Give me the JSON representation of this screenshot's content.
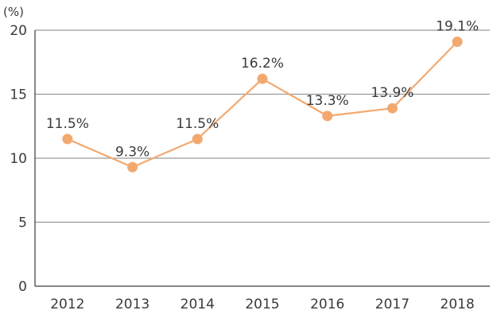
{
  "chart_data": {
    "type": "line",
    "title": "",
    "xlabel": "",
    "ylabel": "(%)",
    "categories": [
      "2012",
      "2013",
      "2014",
      "2015",
      "2016",
      "2017",
      "2018"
    ],
    "series": [
      {
        "name": "",
        "values": [
          11.5,
          9.3,
          11.5,
          16.2,
          13.3,
          13.9,
          19.1
        ],
        "labels": [
          "11.5%",
          "9.3%",
          "11.5%",
          "16.2%",
          "13.3%",
          "13.9%",
          "19.1%"
        ]
      }
    ],
    "ylim": [
      0,
      20
    ],
    "yticks": [
      "0",
      "5",
      "10",
      "15",
      "20"
    ],
    "grid": true,
    "colors": {
      "line": "#f3a86e",
      "marker": "#f3a86e",
      "grid": "#9a9a9a",
      "axis": "#3a3a3a",
      "text": "#3a3a3a"
    }
  }
}
